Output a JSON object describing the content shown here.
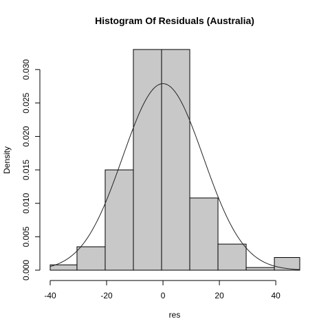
{
  "chart_data": {
    "type": "bar",
    "title": "Histogram Of Residuals (Australia)",
    "xlabel": "res",
    "ylabel": "Density",
    "xlim": [
      -40,
      48.5
    ],
    "ylim": [
      0,
      0.033
    ],
    "x_ticks": [
      -40,
      -20,
      0,
      20,
      40
    ],
    "y_ticks": [
      0.0,
      0.005,
      0.01,
      0.015,
      0.02,
      0.025,
      0.03
    ],
    "x_tick_labels": [
      "-40",
      "-20",
      "0",
      "20",
      "40"
    ],
    "y_tick_labels": [
      "0.000",
      "0.005",
      "0.010",
      "0.015",
      "0.020",
      "0.025",
      "0.030"
    ],
    "bins": [
      {
        "start": -40.5,
        "end": -30.5,
        "density": 0.0008
      },
      {
        "start": -30.5,
        "end": -20.5,
        "density": 0.0035
      },
      {
        "start": -20.5,
        "end": -10.5,
        "density": 0.015
      },
      {
        "start": -10.5,
        "end": -0.5,
        "density": 0.033
      },
      {
        "start": -0.5,
        "end": 9.5,
        "density": 0.033
      },
      {
        "start": 9.5,
        "end": 19.5,
        "density": 0.0108
      },
      {
        "start": 19.5,
        "end": 29.5,
        "density": 0.0039
      },
      {
        "start": 29.5,
        "end": 39.5,
        "density": 0.0004
      },
      {
        "start": 39.5,
        "end": 49.5,
        "density": 0.0019
      }
    ],
    "density_curve": {
      "type": "normal",
      "mean": 0,
      "sd": 14.3,
      "x_range": [
        -40,
        48.5
      ]
    },
    "grid": false
  }
}
